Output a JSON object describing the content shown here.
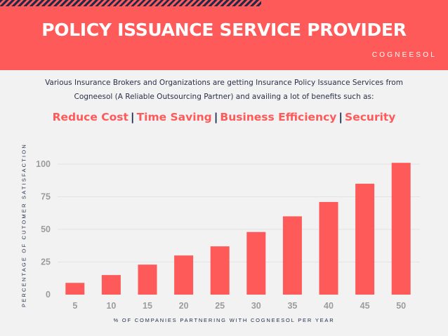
{
  "header": {
    "title": "POLICY ISSUANCE SERVICE PROVIDER",
    "brand": "COGNEESOL",
    "bg_color": "#ff5a5a",
    "stripe_color": "#1f2a4a"
  },
  "description": {
    "line1": "Various Insurance Brokers and Organizations are getting Insurance Policy Issuance Services from",
    "line2": "Cogneesol (A Reliable Outsourcing Partner) and availing a lot of benefits such as:"
  },
  "benefits": {
    "items": [
      "Reduce Cost",
      "Time Saving",
      "Business Efficiency",
      "Security"
    ],
    "separator": "|",
    "color": "#ff5a5a"
  },
  "chart_data": {
    "type": "bar",
    "categories": [
      "5",
      "10",
      "15",
      "20",
      "25",
      "30",
      "35",
      "40",
      "45",
      "50"
    ],
    "values": [
      9,
      15,
      23,
      30,
      37,
      48,
      60,
      71,
      85,
      101
    ],
    "xlabel": "% OF COMPANIES PARTNERING WITH COGNEESOL PER YEAR",
    "ylabel": "PERCENTAGE OF CUTOMER SATISFACTION",
    "yticks": [
      0,
      25,
      50,
      75,
      100
    ],
    "ylim": [
      0,
      100
    ],
    "grid": true,
    "bar_color": "#ff5a5a"
  }
}
